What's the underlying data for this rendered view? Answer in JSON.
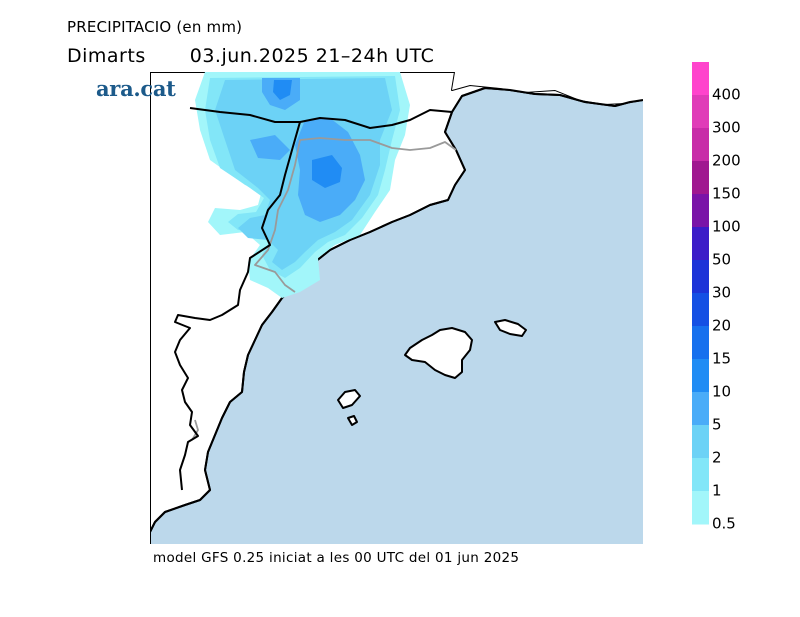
{
  "header": {
    "title": "PRECIPITACIO (en mm)",
    "day": "Dimarts",
    "period": "03.jun.2025 21–24h UTC"
  },
  "logo": {
    "text": "ara.cat"
  },
  "footer": {
    "model_info": "model GFS 0.25 iniciat a les 00 UTC del 01 jun 2025"
  },
  "colors": {
    "sea": "#bcd8eb",
    "land": "#ffffff",
    "coast": "#000000",
    "border": "#9a9a9a"
  },
  "legend": {
    "items": [
      {
        "label": "400",
        "color": "#ff44cc"
      },
      {
        "label": "300",
        "color": "#e03cb8"
      },
      {
        "label": "200",
        "color": "#c82ca8"
      },
      {
        "label": "150",
        "color": "#a01890"
      },
      {
        "label": "100",
        "color": "#7a14a8"
      },
      {
        "label": "50",
        "color": "#3c1cc8"
      },
      {
        "label": "30",
        "color": "#1c34d8"
      },
      {
        "label": "20",
        "color": "#1450e4"
      },
      {
        "label": "15",
        "color": "#1670ee"
      },
      {
        "label": "10",
        "color": "#208cf4"
      },
      {
        "label": "5",
        "color": "#4aacf8"
      },
      {
        "label": "2",
        "color": "#6cd2f6"
      },
      {
        "label": "1",
        "color": "#82e6f8"
      },
      {
        "label": "0.5",
        "color": "#a2f6fa"
      }
    ]
  }
}
